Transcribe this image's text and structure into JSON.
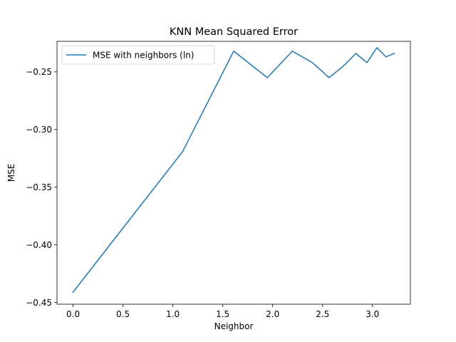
{
  "chart_data": {
    "type": "line",
    "title": "KNN Mean Squared Error",
    "xlabel": "Neighbor",
    "ylabel": "MSE",
    "xlim": [
      -0.161,
      3.38
    ],
    "ylim": [
      -0.4515,
      -0.2235
    ],
    "xticks": [
      0.0,
      0.5,
      1.0,
      1.5,
      2.0,
      2.5,
      3.0
    ],
    "xtick_labels": [
      "0.0",
      "0.5",
      "1.0",
      "1.5",
      "2.0",
      "2.5",
      "3.0"
    ],
    "yticks": [
      -0.45,
      -0.4,
      -0.35,
      -0.3,
      -0.25
    ],
    "ytick_labels": [
      "−0.45",
      "−0.40",
      "−0.35",
      "−0.30",
      "−0.25"
    ],
    "grid": false,
    "legend_position": "upper-left",
    "series": [
      {
        "name": "MSE with neighbors (ln)",
        "color": "#1f77b4",
        "x": [
          0.0,
          1.0986,
          1.6094,
          1.9459,
          2.1972,
          2.3979,
          2.5649,
          2.7081,
          2.8332,
          2.9444,
          3.0445,
          3.1355,
          3.2189
        ],
        "y": [
          -0.441,
          -0.319,
          -0.232,
          -0.255,
          -0.232,
          -0.242,
          -0.255,
          -0.245,
          -0.234,
          -0.242,
          -0.229,
          -0.237,
          -0.234
        ]
      }
    ]
  }
}
